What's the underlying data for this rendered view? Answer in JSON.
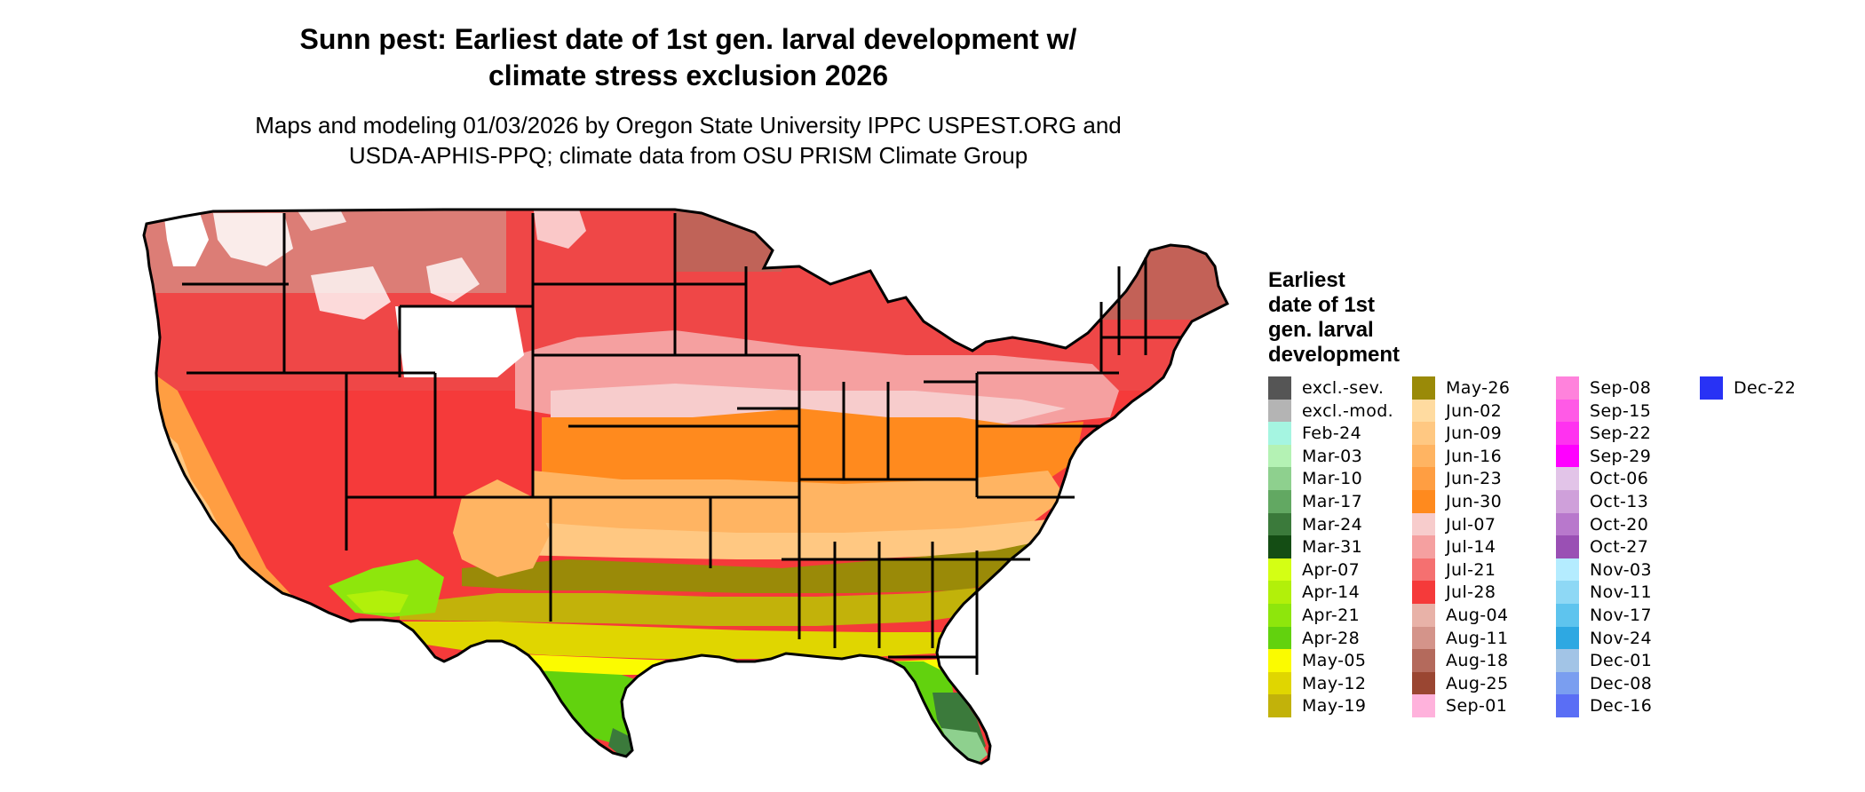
{
  "title_line1": "Sunn pest: Earliest date of 1st gen. larval development w/",
  "title_line2": "climate stress exclusion 2026",
  "subtitle_line1": "Maps and modeling 01/03/2026 by Oregon State University IPPC USPEST.ORG and",
  "subtitle_line2": "USDA-APHIS-PPQ; climate data from OSU PRISM Climate Group",
  "legend": {
    "title_lines": [
      "Earliest",
      "date of 1st",
      "gen. larval",
      "development"
    ],
    "items": [
      {
        "label": "excl.-sev.",
        "color": "#555555"
      },
      {
        "label": "excl.-mod.",
        "color": "#b4b4b4"
      },
      {
        "label": "Feb-24",
        "color": "#a5f5e1"
      },
      {
        "label": "Mar-03",
        "color": "#b4f2b4"
      },
      {
        "label": "Mar-10",
        "color": "#8ed08e"
      },
      {
        "label": "Mar-17",
        "color": "#62a862"
      },
      {
        "label": "Mar-24",
        "color": "#3b7a3b"
      },
      {
        "label": "Mar-31",
        "color": "#144d14"
      },
      {
        "label": "Apr-07",
        "color": "#d4ff14"
      },
      {
        "label": "Apr-14",
        "color": "#b2f00a"
      },
      {
        "label": "Apr-21",
        "color": "#8ee60c"
      },
      {
        "label": "Apr-28",
        "color": "#62d20e"
      },
      {
        "label": "May-05",
        "color": "#fbfb00"
      },
      {
        "label": "May-12",
        "color": "#e0d600"
      },
      {
        "label": "May-19",
        "color": "#c2b20a"
      },
      {
        "label": "May-26",
        "color": "#9a8a08"
      },
      {
        "label": "Jun-02",
        "color": "#ffdba0"
      },
      {
        "label": "Jun-09",
        "color": "#ffc882"
      },
      {
        "label": "Jun-16",
        "color": "#ffb462"
      },
      {
        "label": "Jun-23",
        "color": "#ff9e42"
      },
      {
        "label": "Jun-30",
        "color": "#ff8a1e"
      },
      {
        "label": "Jul-07",
        "color": "#f7cccc"
      },
      {
        "label": "Jul-14",
        "color": "#f5a0a0"
      },
      {
        "label": "Jul-21",
        "color": "#f57070"
      },
      {
        "label": "Jul-28",
        "color": "#f53a3a"
      },
      {
        "label": "Aug-04",
        "color": "#e8b2a8"
      },
      {
        "label": "Aug-11",
        "color": "#d4948a"
      },
      {
        "label": "Aug-18",
        "color": "#b46a5c"
      },
      {
        "label": "Aug-25",
        "color": "#9a4632"
      },
      {
        "label": "Sep-01",
        "color": "#ffb2dc"
      },
      {
        "label": "Sep-08",
        "color": "#ff82dc"
      },
      {
        "label": "Sep-15",
        "color": "#ff5ae6"
      },
      {
        "label": "Sep-22",
        "color": "#ff32f0"
      },
      {
        "label": "Sep-29",
        "color": "#ff00ff"
      },
      {
        "label": "Oct-06",
        "color": "#e2c4e8"
      },
      {
        "label": "Oct-13",
        "color": "#cfa0da"
      },
      {
        "label": "Oct-20",
        "color": "#b878cc"
      },
      {
        "label": "Oct-27",
        "color": "#9a50b4"
      },
      {
        "label": "Nov-03",
        "color": "#b4ecff"
      },
      {
        "label": "Nov-11",
        "color": "#8ed8f5"
      },
      {
        "label": "Nov-17",
        "color": "#5ec4ee"
      },
      {
        "label": "Nov-24",
        "color": "#2ea8e2"
      },
      {
        "label": "Dec-01",
        "color": "#a2c4e6"
      },
      {
        "label": "Dec-08",
        "color": "#7a9ef0"
      },
      {
        "label": "Dec-16",
        "color": "#5a6ef5"
      },
      {
        "label": "Dec-22",
        "color": "#2832f5"
      }
    ]
  }
}
